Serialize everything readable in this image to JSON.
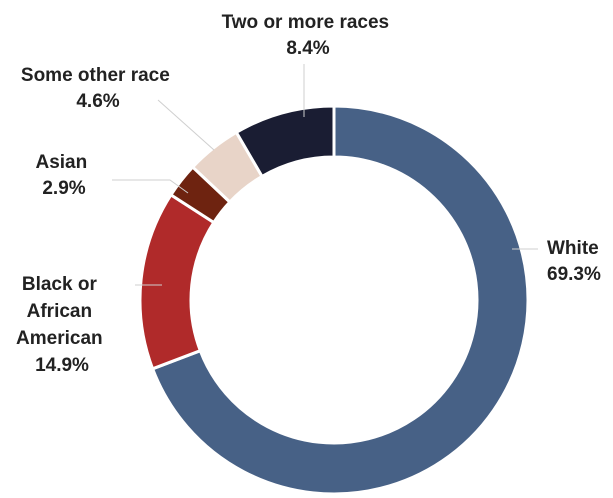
{
  "chart_data": {
    "type": "pie",
    "variant": "donut",
    "title": "",
    "order": "clockwise from top",
    "slices": [
      {
        "label_lines": [
          "White"
        ],
        "value_text": "69.3%",
        "value": 69.3,
        "color": "#476186"
      },
      {
        "label_lines": [
          "Black or",
          "African",
          "American"
        ],
        "value_text": "14.9%",
        "value": 14.9,
        "color": "#b02a2a"
      },
      {
        "label_lines": [
          "Asian"
        ],
        "value_text": "2.9%",
        "value": 2.9,
        "color": "#6e2310"
      },
      {
        "label_lines": [
          "Some other race"
        ],
        "value_text": "4.6%",
        "value": 4.6,
        "color": "#e8d4c8"
      },
      {
        "label_lines": [
          "Two or more races"
        ],
        "value_text": "8.4%",
        "value": 8.4,
        "color": "#1a1d33"
      }
    ]
  }
}
